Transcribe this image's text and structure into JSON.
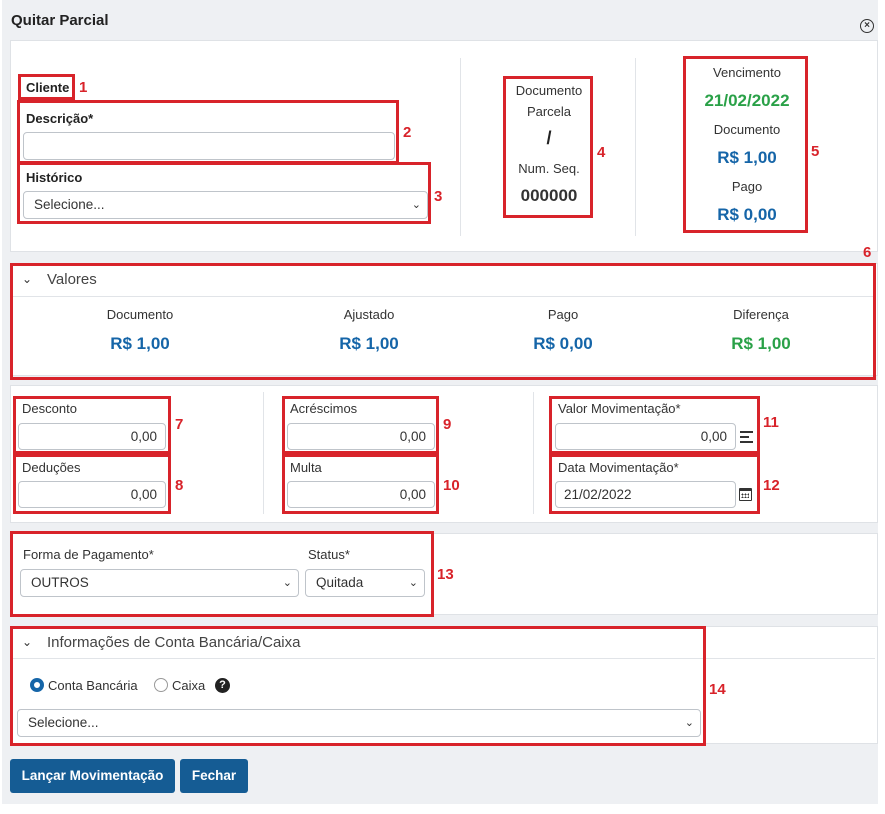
{
  "modal": {
    "title": "Quitar Parcial"
  },
  "client": {
    "cliente_label": "Cliente",
    "descricao_label": "Descrição*",
    "descricao_value": "",
    "historico_label": "Histórico",
    "historico_value": "Selecione..."
  },
  "document": {
    "documento_parcela_label": "Documento\nParcela",
    "documento_label": "Documento",
    "parcela_label": "Parcela",
    "parcela_value": "/",
    "num_seq_label": "Num. Seq.",
    "num_seq_value": "000000"
  },
  "due": {
    "vencimento_label": "Vencimento",
    "vencimento_value": "21/02/2022",
    "documento_label": "Documento",
    "documento_value": "R$ 1,00",
    "pago_label": "Pago",
    "pago_value": "R$ 0,00"
  },
  "valores": {
    "header": "Valores",
    "items": [
      {
        "label": "Documento",
        "value": "R$ 1,00"
      },
      {
        "label": "Ajustado",
        "value": "R$ 1,00"
      },
      {
        "label": "Pago",
        "value": "R$ 0,00"
      },
      {
        "label": "Diferença",
        "value": "R$ 1,00"
      }
    ]
  },
  "adjustments": {
    "desconto_label": "Desconto",
    "desconto_value": "0,00",
    "deducoes_label": "Deduções",
    "deducoes_value": "0,00",
    "acrescimos_label": "Acréscimos",
    "acrescimos_value": "0,00",
    "multa_label": "Multa",
    "multa_value": "0,00",
    "valor_mov_label": "Valor Movimentação*",
    "valor_mov_value": "0,00",
    "data_mov_label": "Data Movimentação*",
    "data_mov_value": "21/02/2022"
  },
  "payment": {
    "forma_label": "Forma de Pagamento*",
    "forma_value": "OUTROS",
    "status_label": "Status*",
    "status_value": "Quitada"
  },
  "bank": {
    "header": "Informações de Conta Bancária/Caixa",
    "conta_label": "Conta Bancária",
    "caixa_label": "Caixa",
    "select_value": "Selecione..."
  },
  "buttons": {
    "lancar": "Lançar Movimentação",
    "fechar": "Fechar"
  },
  "annotations": [
    "1",
    "2",
    "3",
    "4",
    "5",
    "6",
    "7",
    "8",
    "9",
    "10",
    "11",
    "12",
    "13",
    "14"
  ],
  "colors": {
    "annotation": "#d8232a",
    "value_blue": "#1565a8",
    "value_green": "#2aa148",
    "button": "#155c94"
  }
}
